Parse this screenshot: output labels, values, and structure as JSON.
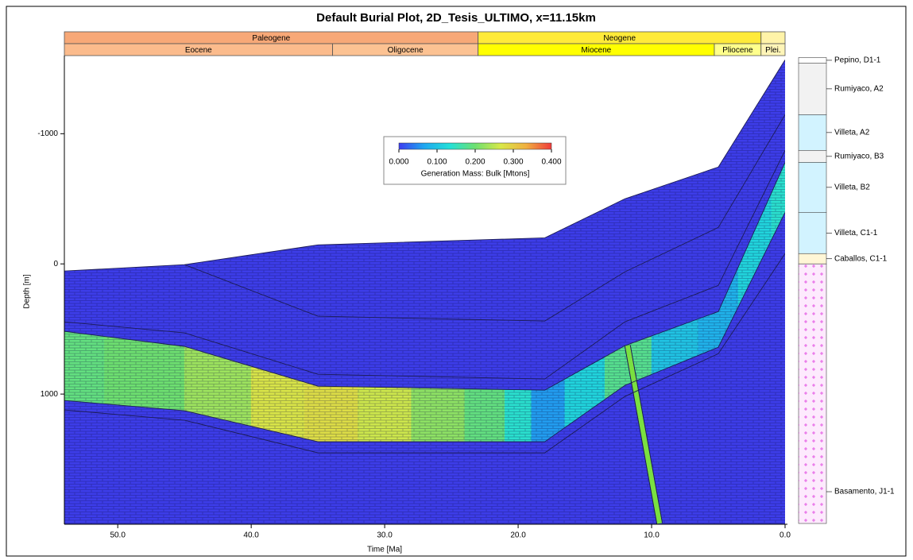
{
  "chart_data": {
    "type": "burial",
    "title": "Default Burial Plot, 2D_Tesis_ULTIMO, x=11.15km",
    "x_label": "Time [Ma]",
    "y_label": "Depth [m]",
    "xlim": [
      54,
      0
    ],
    "ylim": [
      -1600,
      2000
    ],
    "xticks": [
      {
        "value": 50,
        "label": "50.0"
      },
      {
        "value": 40,
        "label": "40.0"
      },
      {
        "value": 30,
        "label": "30.0"
      },
      {
        "value": 20,
        "label": "20.0"
      },
      {
        "value": 10,
        "label": "10.0"
      },
      {
        "value": 0,
        "label": "0.0"
      }
    ],
    "yticks": [
      -1000,
      0,
      1000
    ],
    "periods": {
      "names": [
        "Paleogene",
        "Neogene",
        null
      ],
      "start": [
        54,
        23,
        1.8
      ],
      "end": [
        23,
        1.8,
        0
      ],
      "colors": [
        "#f7a877",
        "#ffea3a",
        "#fff3a8"
      ]
    },
    "epochs": {
      "names": [
        "Eocene",
        "Oligocene",
        "Miocene",
        "Pliocene",
        "Plei."
      ],
      "start": [
        54,
        33.9,
        23,
        5.3,
        1.8
      ],
      "end": [
        33.9,
        23,
        5.3,
        1.8,
        0
      ],
      "colors": [
        "#fbbb8c",
        "#fcc292",
        "#ffff00",
        "#ffff8c",
        "#fff5b8"
      ]
    },
    "x": [
      54,
      45,
      35,
      18,
      12,
      5,
      0
    ],
    "horizons": [
      {
        "values": [
          55,
          6,
          -146,
          -200,
          -500,
          -744,
          -1567
        ]
      },
      {
        "values": [
          null,
          6,
          402,
          439,
          61,
          -280,
          -1146
        ]
      },
      {
        "values": [
          445,
          530,
          848,
          884,
          445,
          165,
          -872
        ]
      },
      {
        "values": [
          518,
          634,
          939,
          970,
          628,
          366,
          -780
        ]
      },
      {
        "values": [
          1049,
          1128,
          1366,
          1366,
          933,
          640,
          -396
        ]
      },
      {
        "values": [
          1122,
          1201,
          1451,
          1451,
          1018,
          690,
          -79
        ]
      }
    ],
    "fill_color": "#3d3de9",
    "line_color": "#1c1c55",
    "source": {
      "x": [
        54,
        48,
        42,
        38,
        34,
        30,
        26,
        22,
        20,
        18,
        15,
        12,
        8,
        5,
        2,
        0
      ],
      "values": [
        0.19,
        0.2,
        0.23,
        0.27,
        0.28,
        0.26,
        0.22,
        0.19,
        0.14,
        0.06,
        0.12,
        0.18,
        0.1,
        0.08,
        0.12,
        0.14
      ]
    },
    "fault": {
      "x": [
        11.8,
        9.4
      ],
      "y": [
        628,
        1994
      ],
      "color": "#7ae040"
    },
    "colorbar": {
      "label": "Generation Mass: Bulk [Mtons]",
      "ticks": [
        {
          "value": 0,
          "label": "0.000"
        },
        {
          "value": 0.1,
          "label": "0.100"
        },
        {
          "value": 0.2,
          "label": "0.200"
        },
        {
          "value": 0.3,
          "label": "0.300"
        },
        {
          "value": 0.4,
          "label": "0.400"
        }
      ],
      "colormap": [
        "#3c3cf0",
        "#1fa8f0",
        "#22e0d8",
        "#6ee070",
        "#d8e848",
        "#f0b040",
        "#f03c3c"
      ]
    },
    "column": {
      "layers": [
        {
          "name": "Pepino, D1-1",
          "top": -1585,
          "base": -1543,
          "color": "#ffffff"
        },
        {
          "name": "Rumiyaco, A2",
          "top": -1543,
          "base": -1146,
          "color": "#f2f2f2"
        },
        {
          "name": "Villeta, A2",
          "top": -1146,
          "base": -872,
          "color": "#d2f3ff"
        },
        {
          "name": "Rumiyaco, B3",
          "top": -872,
          "base": -780,
          "color": "#f2f2f2"
        },
        {
          "name": "Villeta, B2",
          "top": -780,
          "base": -396,
          "color": "#d2f3ff"
        },
        {
          "name": "Villeta, C1-1",
          "top": -396,
          "base": -79,
          "color": "#d2f3ff"
        },
        {
          "name": "Caballos, C1-1",
          "top": -79,
          "base": 0,
          "color": "#fff6d6"
        },
        {
          "name": "Basamento, J1-1",
          "top": 0,
          "base": 1994,
          "color": "#fdeafd"
        }
      ]
    }
  }
}
